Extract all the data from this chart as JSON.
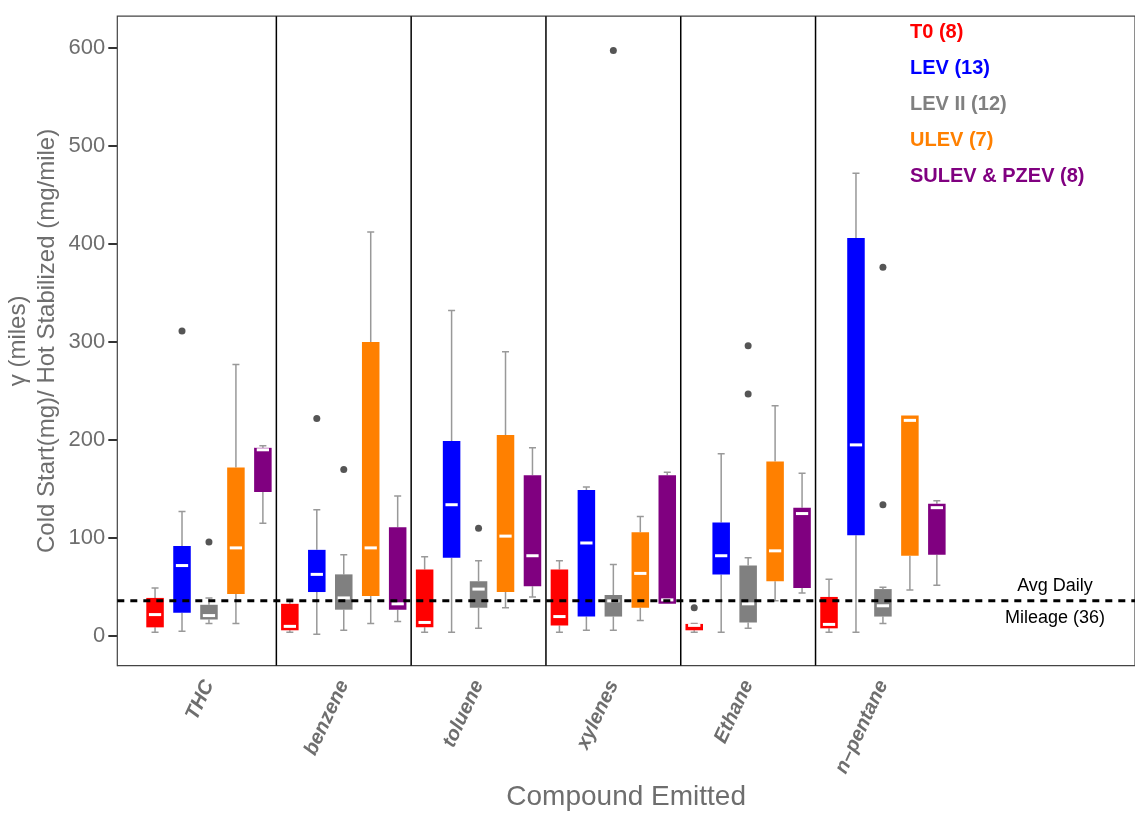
{
  "chart_data": {
    "type": "box",
    "xlabel": "Compound Emitted",
    "ylabel": "γ (miles)\nCold Start(mg)/ Hot Stabilized (mg/mile)",
    "categories": [
      "THC",
      "benzene",
      "toluene",
      "xylenes",
      "Ethane",
      "n–pentane"
    ],
    "ylim": [
      -30,
      632
    ],
    "yticks": [
      0,
      100,
      200,
      300,
      400,
      500,
      600
    ],
    "grid": "x",
    "legend": "top right",
    "ref_lines": [
      {
        "axis": "y",
        "value": 36,
        "label": "Avg Daily Mileage (36)",
        "color": "#000000",
        "line_style": "dashed"
      }
    ],
    "series": [
      {
        "name": "T0 (8)",
        "color": "#ff0000",
        "boxes": [
          {
            "low": 4,
            "q1": 9,
            "median": 22,
            "q3": 39,
            "high": 49
          },
          {
            "low": 4,
            "q1": 6,
            "median": 10,
            "q3": 33,
            "high": 38
          },
          {
            "low": 4,
            "q1": 9,
            "median": 14,
            "q3": 68,
            "high": 81
          },
          {
            "low": 4,
            "q1": 11,
            "median": 20,
            "q3": 68,
            "high": 77
          },
          {
            "low": 4,
            "q1": 6,
            "median": 11,
            "q3": 12.5,
            "high": 13,
            "outliers": [
              29
            ]
          },
          {
            "low": 4,
            "q1": 8,
            "median": 12,
            "q3": 40,
            "high": 58
          }
        ]
      },
      {
        "name": "LEV (13)",
        "color": "#0000ff",
        "boxes": [
          {
            "low": 5,
            "q1": 24,
            "median": 72,
            "q3": 92,
            "high": 127,
            "outliers": [
              311
            ]
          },
          {
            "low": 2,
            "q1": 45,
            "median": 63,
            "q3": 88,
            "high": 129,
            "outliers": [
              222
            ]
          },
          {
            "low": 4,
            "q1": 80,
            "median": 134,
            "q3": 199,
            "high": 332
          },
          {
            "low": 6,
            "q1": 20,
            "median": 95,
            "q3": 149,
            "high": 152
          },
          {
            "low": 4,
            "q1": 63,
            "median": 82,
            "q3": 116,
            "high": 186
          },
          {
            "low": 4,
            "q1": 103,
            "median": 195,
            "q3": 406,
            "high": 472
          }
        ]
      },
      {
        "name": "LEV II (12)",
        "color": "#808080",
        "boxes": [
          {
            "low": 13,
            "q1": 17,
            "median": 21,
            "q3": 32,
            "high": 39,
            "outliers": [
              96
            ]
          },
          {
            "low": 6,
            "q1": 27,
            "median": 39,
            "q3": 63,
            "high": 83,
            "outliers": [
              170
            ]
          },
          {
            "low": 8,
            "q1": 29,
            "median": 48,
            "q3": 56,
            "high": 77,
            "outliers": [
              110
            ]
          },
          {
            "low": 6,
            "q1": 20,
            "median": 36,
            "q3": 42,
            "high": 73,
            "outliers": [
              597
            ]
          },
          {
            "low": 8,
            "q1": 14,
            "median": 33,
            "q3": 72,
            "high": 80,
            "outliers": [
              296,
              247
            ]
          },
          {
            "low": 13,
            "q1": 20,
            "median": 31,
            "q3": 48,
            "high": 50,
            "outliers": [
              376,
              134
            ]
          }
        ]
      },
      {
        "name": "ULEV (7)",
        "color": "#ff8000",
        "boxes": [
          {
            "low": 13,
            "q1": 43,
            "median": 90,
            "q3": 172,
            "high": 277
          },
          {
            "low": 13,
            "q1": 41,
            "median": 90,
            "q3": 300,
            "high": 412
          },
          {
            "low": 29,
            "q1": 45,
            "median": 102,
            "q3": 205,
            "high": 290
          },
          {
            "low": 16,
            "q1": 29,
            "median": 64,
            "q3": 106,
            "high": 122
          },
          {
            "low": 36,
            "q1": 56,
            "median": 87,
            "q3": 178,
            "high": 235
          },
          {
            "low": 47,
            "q1": 82,
            "median": 220,
            "q3": 225,
            "high": 225
          }
        ]
      },
      {
        "name": "SULEV & PZEV (8)",
        "color": "#800080",
        "boxes": [
          {
            "low": 115,
            "q1": 147,
            "median": 190,
            "q3": 192,
            "high": 194
          },
          {
            "low": 15,
            "q1": 27,
            "median": 33,
            "q3": 111,
            "high": 143
          },
          {
            "low": 40,
            "q1": 51,
            "median": 82,
            "q3": 164,
            "high": 192
          },
          {
            "low": 33,
            "q1": 33,
            "median": 37,
            "q3": 164,
            "high": 167
          },
          {
            "low": 44,
            "q1": 49,
            "median": 125,
            "q3": 131,
            "high": 166
          },
          {
            "low": 52,
            "q1": 83,
            "median": 131,
            "q3": 135,
            "high": 138
          }
        ]
      }
    ]
  }
}
